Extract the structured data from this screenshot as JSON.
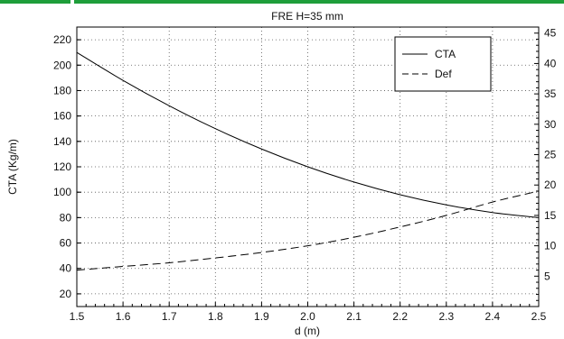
{
  "colors": {
    "topbar": "#1e9e3a",
    "axis": "#000000",
    "grid": "#555555",
    "background": "#ffffff"
  },
  "chart_data": {
    "type": "line",
    "title": "FRE H=35 mm",
    "xlabel": "d (m)",
    "ylabel": "CTA (Kg/m)",
    "y2label": "",
    "xlim": [
      1.5,
      2.5
    ],
    "ylim": [
      10,
      230
    ],
    "y2lim": [
      0,
      46
    ],
    "grid": true,
    "legend_position": "top-right",
    "x_ticks": [
      "1.5",
      "1.6",
      "1.7",
      "1.8",
      "1.9",
      "2.0",
      "2.1",
      "2.2",
      "2.3",
      "2.4",
      "2.5"
    ],
    "y_ticks": [
      "20",
      "40",
      "60",
      "80",
      "100",
      "120",
      "140",
      "160",
      "180",
      "200",
      "220"
    ],
    "y2_ticks": [
      "5",
      "10",
      "15",
      "20",
      "25",
      "30",
      "35",
      "40",
      "45"
    ],
    "x": [
      1.5,
      1.6,
      1.7,
      1.8,
      1.9,
      2.0,
      2.1,
      2.2,
      2.3,
      2.4,
      2.5
    ],
    "series": [
      {
        "name": "CTA",
        "axis": "left",
        "style": "solid",
        "values": [
          210,
          188,
          168,
          150,
          134,
          120,
          108,
          98,
          90,
          84,
          80
        ]
      },
      {
        "name": "Def",
        "axis": "right",
        "style": "dashed",
        "values": [
          6.0,
          6.6,
          7.2,
          8.0,
          8.9,
          10.0,
          11.4,
          13.1,
          15.0,
          17.2,
          19.0
        ]
      }
    ]
  }
}
